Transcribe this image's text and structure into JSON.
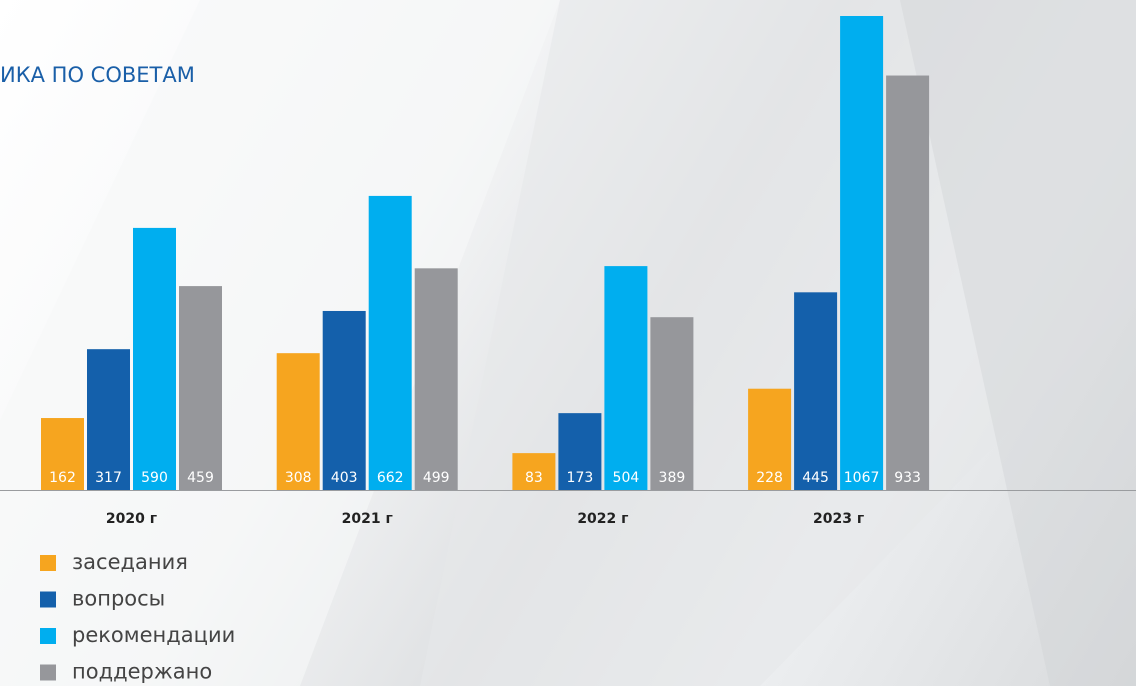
{
  "chart_data": {
    "type": "bar",
    "title": "ИКА ПО СОВЕТАМ",
    "categories": [
      "2020 г",
      "2021 г",
      "2022 г",
      "2023 г"
    ],
    "series": [
      {
        "name": "заседания",
        "color": "#f6a51f",
        "values": [
          162,
          308,
          83,
          228
        ]
      },
      {
        "name": "вопросы",
        "color": "#1460ab",
        "values": [
          317,
          403,
          173,
          445
        ]
      },
      {
        "name": "рекомендации",
        "color": "#00aeef",
        "values": [
          590,
          662,
          504,
          1067
        ]
      },
      {
        "name": "поддержано",
        "color": "#96979b",
        "values": [
          459,
          499,
          389,
          933
        ]
      }
    ]
  }
}
